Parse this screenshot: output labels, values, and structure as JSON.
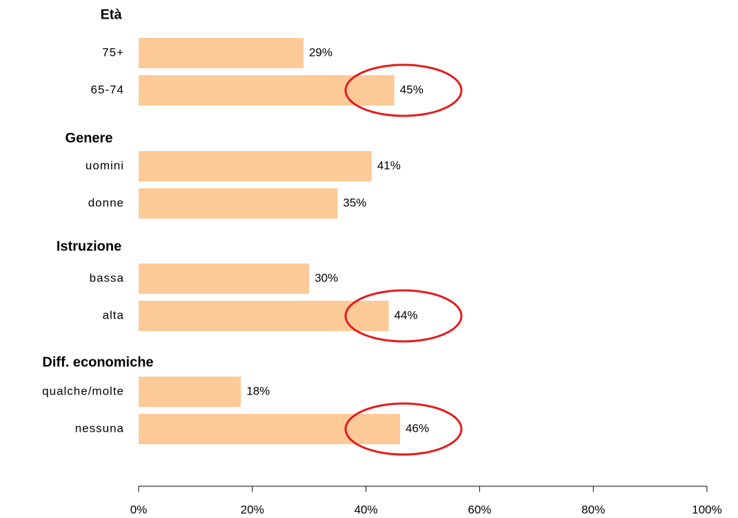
{
  "chart_data": {
    "type": "bar",
    "orientation": "horizontal",
    "groups": [
      {
        "name": "Età",
        "categories": [
          "75+",
          "65-74"
        ],
        "values": [
          29,
          45
        ],
        "value_labels": [
          "29%",
          "45%"
        ],
        "highlight": [
          1
        ]
      },
      {
        "name": "Genere",
        "categories": [
          "uomini",
          "donne"
        ],
        "values": [
          41,
          35
        ],
        "value_labels": [
          "41%",
          "35%"
        ],
        "highlight": []
      },
      {
        "name": "Istruzione",
        "categories": [
          "bassa",
          "alta"
        ],
        "values": [
          30,
          44
        ],
        "value_labels": [
          "30%",
          "44%"
        ],
        "highlight": [
          1
        ]
      },
      {
        "name": "Diff. economiche",
        "categories": [
          "qualche/molte",
          "nessuna"
        ],
        "values": [
          18,
          46
        ],
        "value_labels": [
          "18%",
          "46%"
        ],
        "highlight": [
          1
        ]
      }
    ],
    "color": "#fdca98",
    "highlight_color": "#e8191b",
    "xlim": [
      0,
      100
    ],
    "xticks": [
      {
        "value": 0,
        "label": "0%"
      },
      {
        "value": 20,
        "label": "20%"
      },
      {
        "value": 40,
        "label": "40%"
      },
      {
        "value": 60,
        "label": "60%"
      },
      {
        "value": 80,
        "label": "80%"
      },
      {
        "value": 100,
        "label": "100%"
      }
    ]
  }
}
